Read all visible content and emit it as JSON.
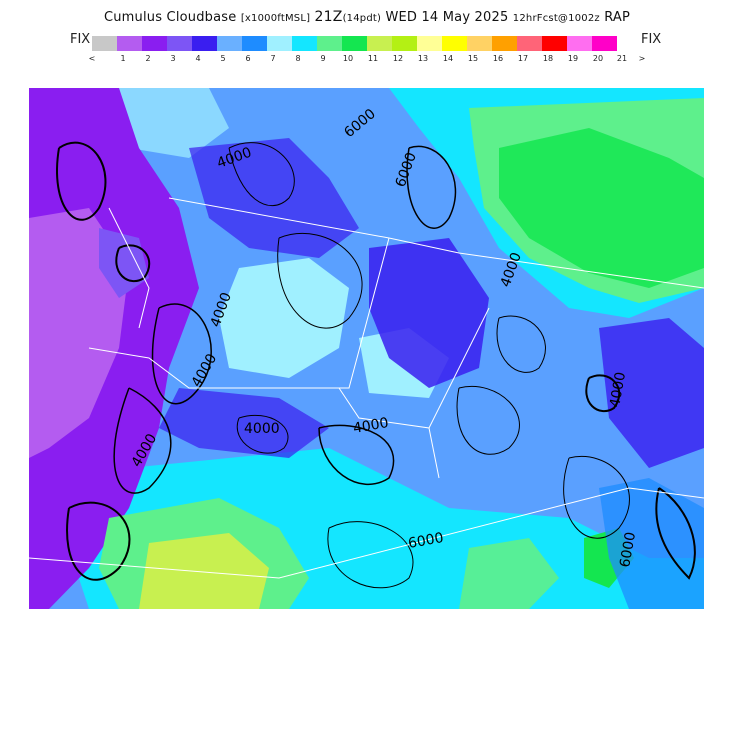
{
  "header": {
    "title_main": "Cumulus Cloudbase",
    "units": "[x1000ftMSL]",
    "valid_hour": "21Z",
    "forecast_hour": "(14pdt)",
    "date": "WED 14 May 2025",
    "run": "12hrFcst@1002z",
    "model": "RAP"
  },
  "legend": {
    "fix_left": "FIX",
    "fix_right": "FIX",
    "swatches": [
      "#c8c8c8",
      "#b45cf0",
      "#8a1ef0",
      "#7d55f5",
      "#3a1ef0",
      "#6ab0ff",
      "#1e8cff",
      "#a0f0ff",
      "#14e6ff",
      "#5ef08c",
      "#14e650",
      "#c8f050",
      "#b4f014",
      "#ffff96",
      "#ffff00",
      "#ffd264",
      "#ffa000",
      "#ff6478",
      "#ff0000",
      "#ff6ef0",
      "#ff00c8"
    ],
    "ticks": [
      "<",
      "1",
      "2",
      "3",
      "4",
      "5",
      "6",
      "7",
      "8",
      "9",
      "10",
      "11",
      "12",
      "13",
      "14",
      "15",
      "16",
      "17",
      "18",
      "19",
      "20",
      "21",
      ">"
    ]
  },
  "map": {
    "contour_labels": [
      "4000",
      "4000",
      "4000",
      "4000",
      "4000",
      "4000",
      "4000",
      "4000",
      "6000",
      "6000",
      "6000",
      "6000"
    ]
  }
}
